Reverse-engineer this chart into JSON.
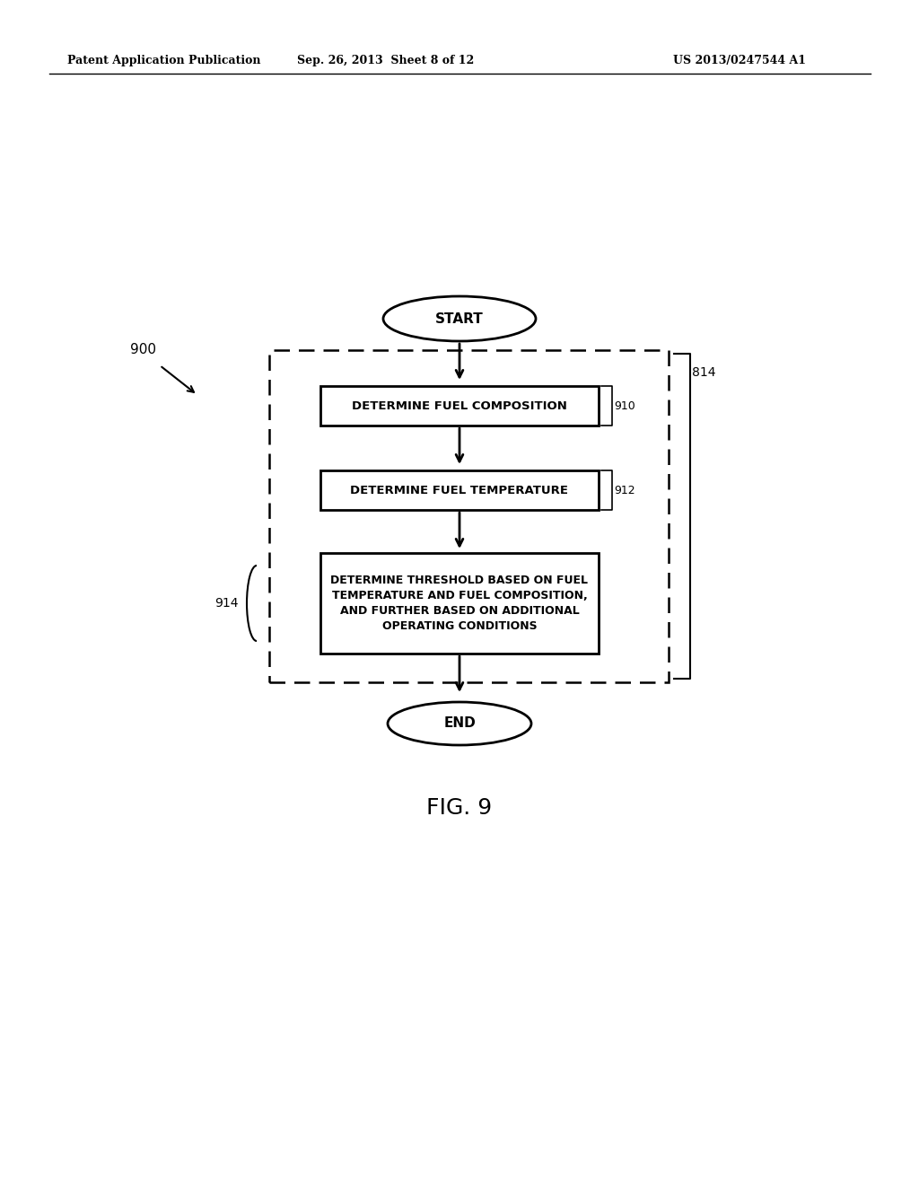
{
  "bg_color": "#ffffff",
  "header_left": "Patent Application Publication",
  "header_center": "Sep. 26, 2013  Sheet 8 of 12",
  "header_right": "US 2013/0247544 A1",
  "figure_label": "FIG. 9",
  "diagram_label": "900",
  "start_text": "START",
  "end_text": "END",
  "box1_text": "DETERMINE FUEL COMPOSITION",
  "box1_label": "910",
  "box2_text": "DETERMINE FUEL TEMPERATURE",
  "box2_label": "912",
  "box3_text": "DETERMINE THRESHOLD BASED ON FUEL\nTEMPERATURE AND FUEL COMPOSITION,\nAND FURTHER BASED ON ADDITIONAL\nOPERATING CONDITIONS",
  "box3_label": "914",
  "outer_dashed_label": "814"
}
